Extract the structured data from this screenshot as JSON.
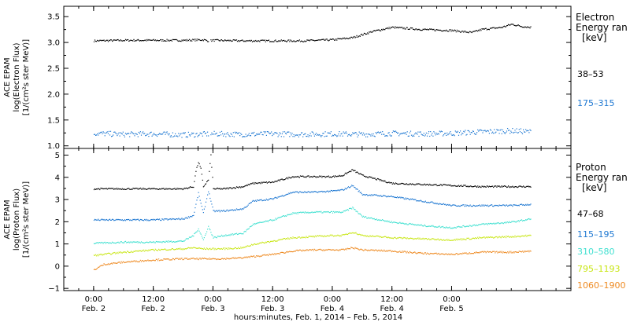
{
  "chart_data": [
    {
      "type": "scatter",
      "panel": "electron",
      "ylabel": [
        "ACE EPAM",
        "log(Electron Flux)",
        "[1/(cm²s ster MeV)]"
      ],
      "ylim": [
        0.95,
        3.7
      ],
      "yticks": [
        1.0,
        1.5,
        2.0,
        2.5,
        3.0,
        3.5
      ],
      "ytick_labels": [
        "1.0",
        "1.5",
        "2.0",
        "2.5",
        "3.0",
        "3.5"
      ],
      "legend_title": [
        "Electron",
        "Energy ran",
        "[keV]"
      ],
      "series": [
        {
          "name": "38–53",
          "color": "#000000",
          "x": [
            0,
            6,
            12,
            18,
            22,
            23,
            24,
            30,
            36,
            42,
            48,
            52,
            56,
            60,
            66,
            72,
            76,
            78,
            82,
            84,
            86,
            88
          ],
          "y": [
            3.04,
            3.05,
            3.05,
            3.05,
            3.06,
            3.04,
            3.05,
            3.04,
            3.04,
            3.04,
            3.06,
            3.1,
            3.22,
            3.3,
            3.26,
            3.24,
            3.2,
            3.26,
            3.3,
            3.36,
            3.32,
            3.3
          ]
        },
        {
          "name": "175–315",
          "color": "#1e78d2",
          "x": [
            0,
            6,
            12,
            18,
            24,
            30,
            36,
            42,
            48,
            54,
            60,
            66,
            72,
            78,
            84,
            88
          ],
          "y": [
            1.25,
            1.23,
            1.24,
            1.22,
            1.24,
            1.23,
            1.24,
            1.23,
            1.24,
            1.23,
            1.25,
            1.24,
            1.25,
            1.28,
            1.3,
            1.28
          ]
        }
      ]
    },
    {
      "type": "scatter",
      "panel": "proton",
      "ylabel": [
        "ACE EPAM",
        "log(Proton Flux)",
        "[1/(cm²s ster MeV)]"
      ],
      "ylim": [
        -1.1,
        5.3
      ],
      "yticks": [
        -1,
        0,
        1,
        2,
        3,
        4,
        5
      ],
      "ytick_labels": [
        "−1",
        "0",
        "1",
        "2",
        "3",
        "4",
        "5"
      ],
      "legend_title": [
        "Proton",
        "Energy ran",
        "[keV]"
      ],
      "series": [
        {
          "name": "47–68",
          "color": "#000000",
          "x": [
            0,
            6,
            12,
            18,
            20,
            20.5,
            21,
            21.5,
            22,
            23,
            23.5,
            24,
            26,
            30,
            32,
            36,
            40,
            44,
            48,
            50,
            52,
            54,
            60,
            66,
            72,
            78,
            84,
            88
          ],
          "y": [
            3.5,
            3.5,
            3.5,
            3.5,
            3.6,
            4.3,
            4.7,
            4.4,
            3.6,
            3.9,
            5.0,
            3.5,
            3.5,
            3.6,
            3.75,
            3.8,
            4.05,
            4.05,
            4.05,
            4.1,
            4.35,
            4.1,
            3.75,
            3.7,
            3.65,
            3.6,
            3.6,
            3.6
          ]
        },
        {
          "name": "115–195",
          "color": "#1e78d2",
          "x": [
            0,
            6,
            12,
            18,
            20,
            21,
            22,
            23,
            24,
            26,
            30,
            32,
            36,
            40,
            44,
            48,
            50,
            52,
            54,
            60,
            66,
            72,
            78,
            84,
            88
          ],
          "y": [
            2.1,
            2.1,
            2.1,
            2.15,
            2.3,
            3.3,
            2.4,
            3.4,
            2.5,
            2.5,
            2.6,
            2.95,
            3.05,
            3.35,
            3.35,
            3.4,
            3.45,
            3.65,
            3.25,
            3.15,
            2.95,
            2.75,
            2.75,
            2.75,
            2.8
          ]
        },
        {
          "name": "310–580",
          "color": "#40e0d0",
          "x": [
            0,
            6,
            12,
            18,
            20,
            21,
            22,
            23,
            24,
            26,
            30,
            32,
            36,
            40,
            44,
            48,
            50,
            52,
            54,
            60,
            66,
            72,
            78,
            84,
            88
          ],
          "y": [
            1.05,
            1.1,
            1.1,
            1.15,
            1.4,
            1.7,
            1.2,
            1.8,
            1.3,
            1.4,
            1.5,
            1.9,
            2.1,
            2.4,
            2.45,
            2.45,
            2.45,
            2.65,
            2.25,
            2.0,
            1.85,
            1.75,
            1.9,
            2.0,
            2.15
          ]
        },
        {
          "name": "795–1193",
          "color": "#c8e614",
          "x": [
            0,
            6,
            12,
            18,
            20,
            22,
            24,
            26,
            30,
            32,
            36,
            40,
            44,
            48,
            50,
            52,
            54,
            60,
            66,
            72,
            78,
            84,
            88
          ],
          "y": [
            0.5,
            0.65,
            0.75,
            0.8,
            0.85,
            0.8,
            0.8,
            0.8,
            0.85,
            1.0,
            1.15,
            1.3,
            1.35,
            1.4,
            1.4,
            1.55,
            1.4,
            1.3,
            1.25,
            1.2,
            1.3,
            1.35,
            1.4
          ]
        },
        {
          "name": "1060–1900",
          "color": "#ee8a22",
          "x": [
            0,
            2,
            6,
            12,
            18,
            20,
            22,
            24,
            26,
            30,
            32,
            36,
            40,
            44,
            48,
            50,
            52,
            54,
            60,
            66,
            72,
            78,
            84,
            88
          ],
          "y": [
            -0.15,
            0.1,
            0.2,
            0.3,
            0.35,
            0.35,
            0.35,
            0.35,
            0.35,
            0.4,
            0.45,
            0.55,
            0.7,
            0.75,
            0.75,
            0.75,
            0.85,
            0.75,
            0.7,
            0.6,
            0.55,
            0.65,
            0.65,
            0.7
          ]
        }
      ]
    }
  ],
  "xaxis": {
    "range_hours": [
      -6,
      96
    ],
    "ticks": [
      {
        "h": 0,
        "time": "0:00",
        "date": "Feb. 2"
      },
      {
        "h": 12,
        "time": "12:00",
        "date": "Feb. 2"
      },
      {
        "h": 24,
        "time": "0:00",
        "date": "Feb. 3"
      },
      {
        "h": 36,
        "time": "12:00",
        "date": "Feb. 3"
      },
      {
        "h": 48,
        "time": "0:00",
        "date": "Feb. 4"
      },
      {
        "h": 60,
        "time": "12:00",
        "date": "Feb. 4"
      },
      {
        "h": 72,
        "time": "0:00",
        "date": "Feb. 5"
      }
    ],
    "label": "hours:minutes, Feb.  1, 2014 – Feb.  5, 2014"
  }
}
